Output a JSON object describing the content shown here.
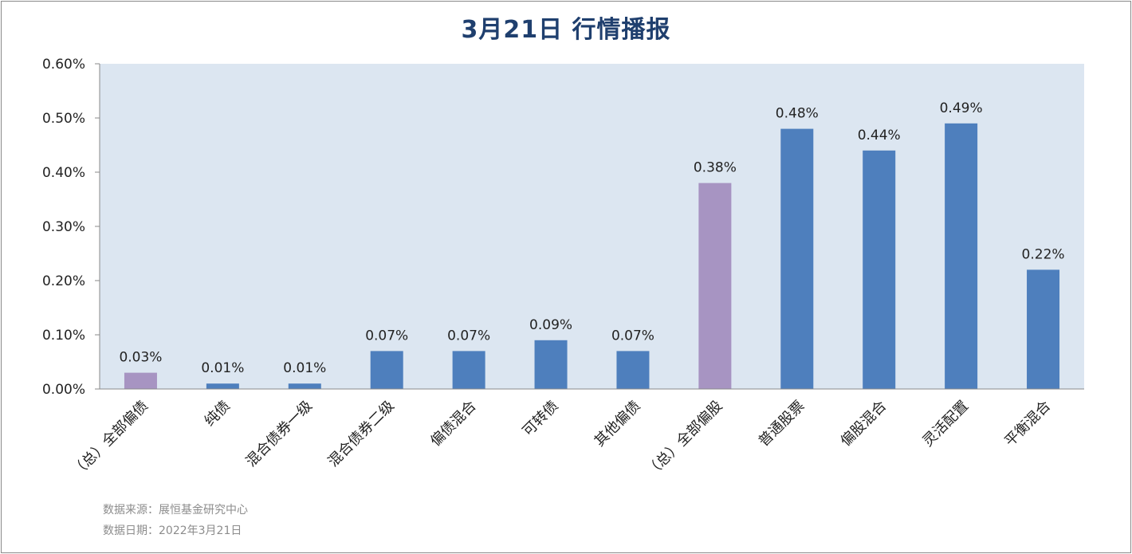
{
  "chart_data": {
    "type": "bar",
    "title": "3月21日  行情播报",
    "categories": [
      "（总）全部偏债",
      "纯债",
      "混合债券一级",
      "混合债券二级",
      "偏债混合",
      "可转债",
      "其他偏债",
      "（总）全部偏股",
      "普通股票",
      "偏股混合",
      "灵活配置",
      "平衡混合"
    ],
    "values": [
      0.03,
      0.01,
      0.01,
      0.07,
      0.07,
      0.09,
      0.07,
      0.38,
      0.48,
      0.44,
      0.49,
      0.22
    ],
    "value_unit": "%",
    "data_labels": [
      "0.03%",
      "0.01%",
      "0.01%",
      "0.07%",
      "0.07%",
      "0.09%",
      "0.07%",
      "0.38%",
      "0.48%",
      "0.44%",
      "0.49%",
      "0.22%"
    ],
    "bar_colors": [
      "#a794c2",
      "#4e7fbd",
      "#4e7fbd",
      "#4e7fbd",
      "#4e7fbd",
      "#4e7fbd",
      "#4e7fbd",
      "#a794c2",
      "#4e7fbd",
      "#4e7fbd",
      "#4e7fbd",
      "#4e7fbd"
    ],
    "y_ticks": [
      0,
      0.1,
      0.2,
      0.3,
      0.4,
      0.5,
      0.6
    ],
    "y_tick_labels": [
      "0.00%",
      "0.10%",
      "0.20%",
      "0.30%",
      "0.40%",
      "0.50%",
      "0.60%"
    ],
    "ylim": [
      0,
      0.6
    ],
    "xlabel": "",
    "ylabel": "",
    "grid": false,
    "legend": "none",
    "plot_background": "#dce6f1",
    "highlight_color": "#a794c2",
    "bar_color": "#4e7fbd",
    "title_color": "#1f3f6e"
  },
  "footer": {
    "source": "数据来源：展恒基金研究中心",
    "date": "数据日期：2022年3月21日"
  }
}
